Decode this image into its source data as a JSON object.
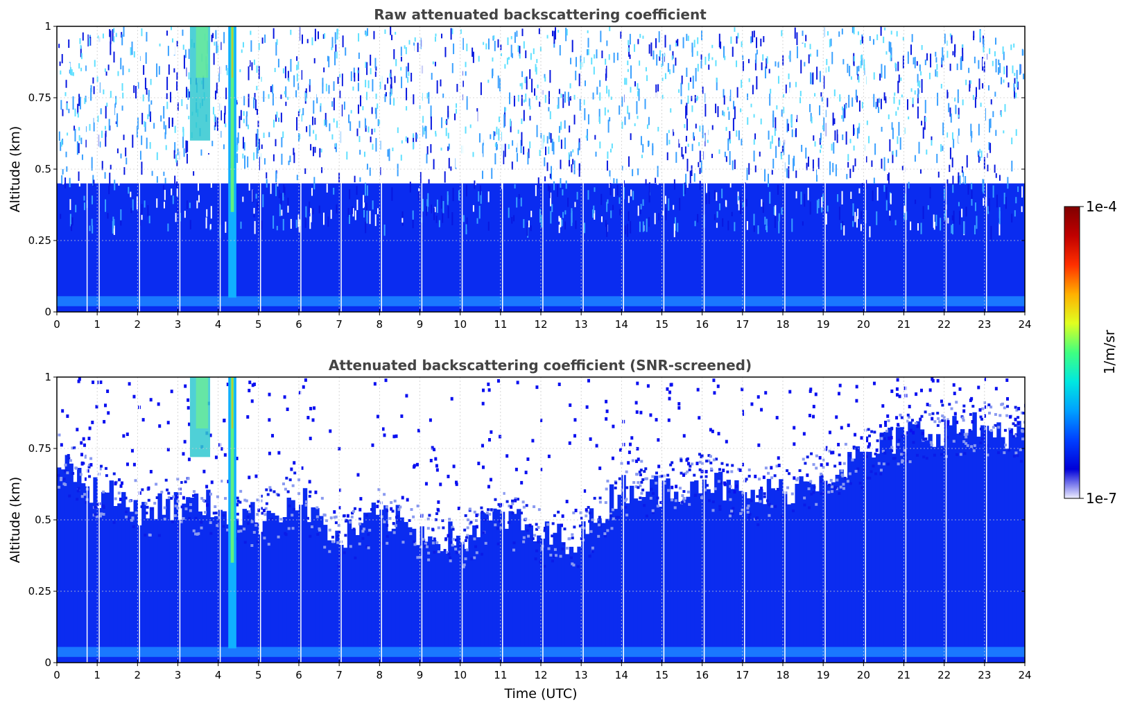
{
  "chart_data": [
    {
      "type": "heatmap",
      "title": "Raw attenuated backscattering coefficient",
      "xlabel": "",
      "ylabel": "Altitude (km)",
      "xlim": [
        0,
        24
      ],
      "ylim": [
        0,
        1
      ],
      "x_ticks": [
        "0",
        "1",
        "2",
        "3",
        "4",
        "5",
        "6",
        "7",
        "8",
        "9",
        "10",
        "11",
        "12",
        "13",
        "14",
        "15",
        "16",
        "17",
        "18",
        "19",
        "20",
        "21",
        "22",
        "23",
        "24"
      ],
      "y_ticks": [
        "0",
        "0.25",
        "0.5",
        "0.75",
        "1"
      ],
      "grid": true,
      "colorscale": "jet",
      "screened": false,
      "features": {
        "profile_gaps_utc": [
          0.75,
          1.05,
          2.05,
          3.05,
          4.05,
          5.05,
          6.05,
          7.05,
          8.05,
          9.05,
          10.05,
          11.05,
          12.05,
          13.05,
          14.05,
          15.05,
          16.05,
          17.05,
          18.05,
          19.05,
          20.05,
          21.05,
          22.05,
          23.05
        ],
        "strong_plume_utc": [
          4.25,
          4.45
        ],
        "weak_plume_utc": [
          3.3,
          3.8
        ]
      }
    },
    {
      "type": "heatmap",
      "title": "Attenuated backscattering coefficient (SNR-screened)",
      "xlabel": "Time (UTC)",
      "ylabel": "Altitude (km)",
      "xlim": [
        0,
        24
      ],
      "ylim": [
        0,
        1
      ],
      "x_ticks": [
        "0",
        "1",
        "2",
        "3",
        "4",
        "5",
        "6",
        "7",
        "8",
        "9",
        "10",
        "11",
        "12",
        "13",
        "14",
        "15",
        "16",
        "17",
        "18",
        "19",
        "20",
        "21",
        "22",
        "23",
        "24"
      ],
      "y_ticks": [
        "0",
        "0.25",
        "0.5",
        "0.75",
        "1"
      ],
      "grid": true,
      "colorscale": "jet",
      "screened": true,
      "features": {
        "profile_gaps_utc": [
          0.75,
          1.05,
          2.05,
          3.05,
          4.05,
          5.05,
          6.05,
          7.05,
          8.05,
          9.05,
          10.05,
          11.05,
          12.05,
          13.05,
          14.05,
          15.05,
          16.05,
          17.05,
          18.05,
          19.05,
          20.05,
          21.05,
          22.05,
          23.05
        ],
        "strong_plume_utc": [
          4.25,
          4.45
        ],
        "weak_plume_utc": [
          3.3,
          3.8
        ],
        "signal_top_km": {
          "x": [
            0,
            1,
            2,
            3,
            4,
            5,
            6,
            7,
            8,
            9,
            10,
            11,
            12,
            13,
            14,
            15,
            16,
            17,
            18,
            19,
            20,
            21,
            22,
            23,
            24
          ],
          "y": [
            0.72,
            0.6,
            0.54,
            0.55,
            0.55,
            0.5,
            0.58,
            0.42,
            0.52,
            0.46,
            0.43,
            0.52,
            0.44,
            0.44,
            0.62,
            0.6,
            0.65,
            0.58,
            0.6,
            0.66,
            0.72,
            0.8,
            0.82,
            0.82,
            0.8
          ]
        }
      }
    }
  ],
  "colorbar": {
    "label": "1/m/sr",
    "max_label": "1e-4",
    "min_label": "1e-7",
    "scale": "log",
    "colors": [
      "#eeeeff",
      "#0000d8",
      "#0040ff",
      "#00a0ff",
      "#00e8e0",
      "#40ff80",
      "#e0ff20",
      "#ffb000",
      "#ff3000",
      "#c00000",
      "#800000"
    ]
  }
}
